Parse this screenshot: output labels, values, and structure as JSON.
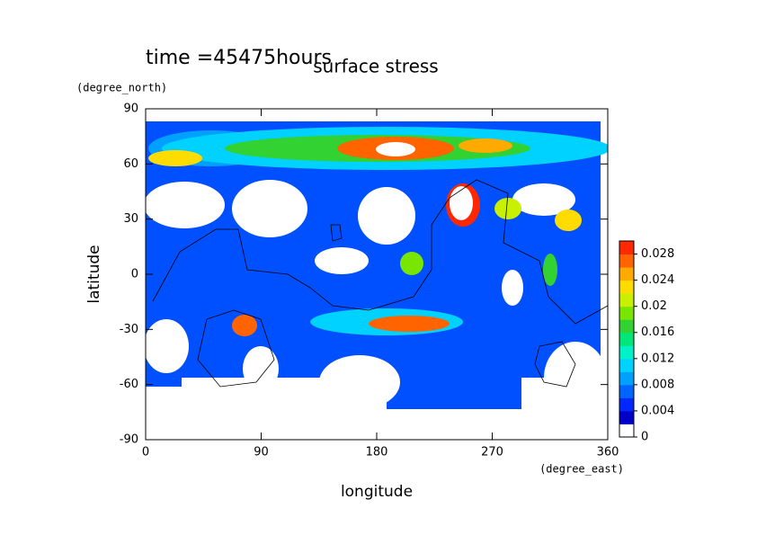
{
  "chart_data": {
    "type": "contour",
    "title": "surface stress",
    "annotation": "time =45475hours",
    "xlabel": "longitude",
    "ylabel": "latitude",
    "x_units": "(degree_east)",
    "y_units": "(degree_north)",
    "xlim": [
      0,
      360
    ],
    "xticks": [
      0,
      90,
      180,
      270,
      360
    ],
    "ylim": [
      -90,
      90
    ],
    "yticks": [
      -90,
      -60,
      -30,
      0,
      30,
      60,
      90
    ],
    "colorbar": {
      "lim": [
        0,
        0.03
      ],
      "ticks": [
        0,
        0.004,
        0.008,
        0.012,
        0.016,
        0.02,
        0.024,
        0.028
      ],
      "colors": [
        "#ffffff",
        "#0000c8",
        "#0028ff",
        "#0064ff",
        "#00a0ff",
        "#00d2ff",
        "#00f0c8",
        "#00e678",
        "#32d232",
        "#78e600",
        "#c8f000",
        "#ffdc00",
        "#ffaa00",
        "#ff6400",
        "#ff2800"
      ]
    }
  }
}
